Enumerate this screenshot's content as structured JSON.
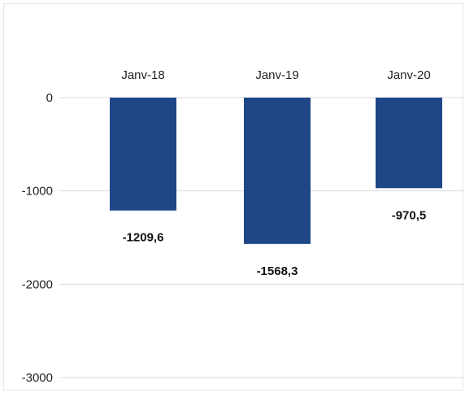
{
  "chart_data": {
    "type": "bar",
    "title": "",
    "xlabel": "",
    "ylabel": "",
    "categories": [
      "Janv-18",
      "Janv-19",
      "Janv-20"
    ],
    "values": [
      -1209.6,
      -1568.3,
      -970.5
    ],
    "value_labels": [
      "-1209,6",
      "-1568,3",
      "-970,5"
    ],
    "ylim": [
      -3000,
      0
    ],
    "yticks": [
      0,
      -1000,
      -2000,
      -3000
    ],
    "ytick_labels": [
      "0",
      "-1000",
      "-2000",
      "-3000"
    ],
    "category_axis_position": "top",
    "grid": true,
    "legend": "none",
    "bar_color": "#1f4788",
    "grid_color": "#d9d9d9"
  }
}
